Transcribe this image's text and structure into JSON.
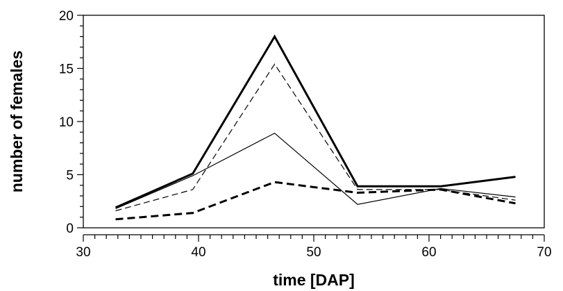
{
  "chart_data": {
    "type": "line",
    "title": "",
    "xlabel": "time [DAP]",
    "ylabel": "number of females",
    "xlim": [
      30,
      70
    ],
    "ylim": [
      0,
      20
    ],
    "xticks": [
      30,
      40,
      50,
      60,
      70
    ],
    "yticks": [
      0,
      5,
      10,
      15,
      20
    ],
    "grid": false,
    "legend": "none",
    "x": [
      32.8,
      39.5,
      46.6,
      53.8,
      61.0,
      67.5
    ],
    "series": [
      {
        "values": [
          1.9,
          5.1,
          18.0,
          3.9,
          3.9,
          4.8
        ],
        "style": "solid-thick"
      },
      {
        "values": [
          1.6,
          3.6,
          15.4,
          3.6,
          3.6,
          2.6
        ],
        "style": "dashed-thin"
      },
      {
        "values": [
          1.8,
          4.9,
          8.9,
          2.2,
          3.7,
          2.9
        ],
        "style": "solid-thin"
      },
      {
        "values": [
          0.8,
          1.4,
          4.3,
          3.3,
          3.6,
          2.3
        ],
        "style": "dashed-thick"
      }
    ],
    "tick_labels": {
      "x": [
        "30",
        "40",
        "50",
        "60",
        "70"
      ],
      "y": [
        "0",
        "5",
        "10",
        "15",
        "20"
      ]
    }
  }
}
